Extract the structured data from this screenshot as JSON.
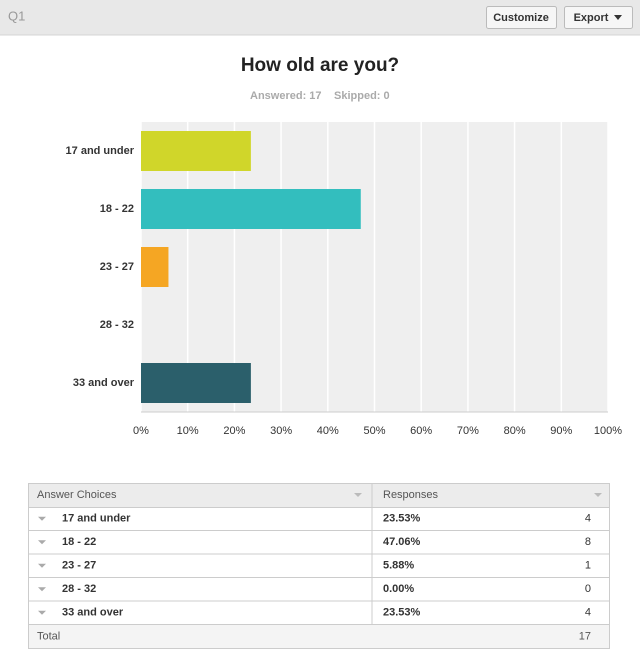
{
  "header": {
    "question": "Q1",
    "buttons": [
      "Customize",
      "Export"
    ]
  },
  "chart_data": {
    "type": "bar",
    "orientation": "horizontal",
    "title": "How old are you?",
    "subtitle": [
      "Answered: 17",
      "Skipped: 0"
    ],
    "categories": [
      "17 and under",
      "18 - 22",
      "23 - 27",
      "28 - 32",
      "33 and over"
    ],
    "values": [
      23.53,
      47.06,
      5.88,
      0,
      23.53
    ],
    "colors": [
      "#d0d62a",
      "#33bebe",
      "#f5a623",
      null,
      "#2b5f6b"
    ],
    "xlim": [
      0,
      100
    ],
    "xticks": [
      {
        "value": 0,
        "label": "0%"
      },
      {
        "value": 10,
        "label": "10%"
      },
      {
        "value": 20,
        "label": "20%"
      },
      {
        "value": 30,
        "label": "30%"
      },
      {
        "value": 40,
        "label": "40%"
      },
      {
        "value": 50,
        "label": "50%"
      },
      {
        "value": 60,
        "label": "60%"
      },
      {
        "value": 70,
        "label": "70%"
      },
      {
        "value": 80,
        "label": "80%"
      },
      {
        "value": 90,
        "label": "90%"
      },
      {
        "value": 100,
        "label": "100%"
      }
    ],
    "grid": true
  },
  "table": {
    "columns": [
      "Answer Choices",
      "Responses"
    ],
    "rows": [
      [
        "17 and under",
        "23.53%",
        4
      ],
      [
        "18 - 22",
        "47.06%",
        8
      ],
      [
        "23 - 27",
        "5.88%",
        1
      ],
      [
        "28 - 32",
        "0.00%",
        0
      ],
      [
        "33 and over",
        "23.53%",
        4
      ]
    ],
    "total": [
      "Total",
      17
    ]
  }
}
